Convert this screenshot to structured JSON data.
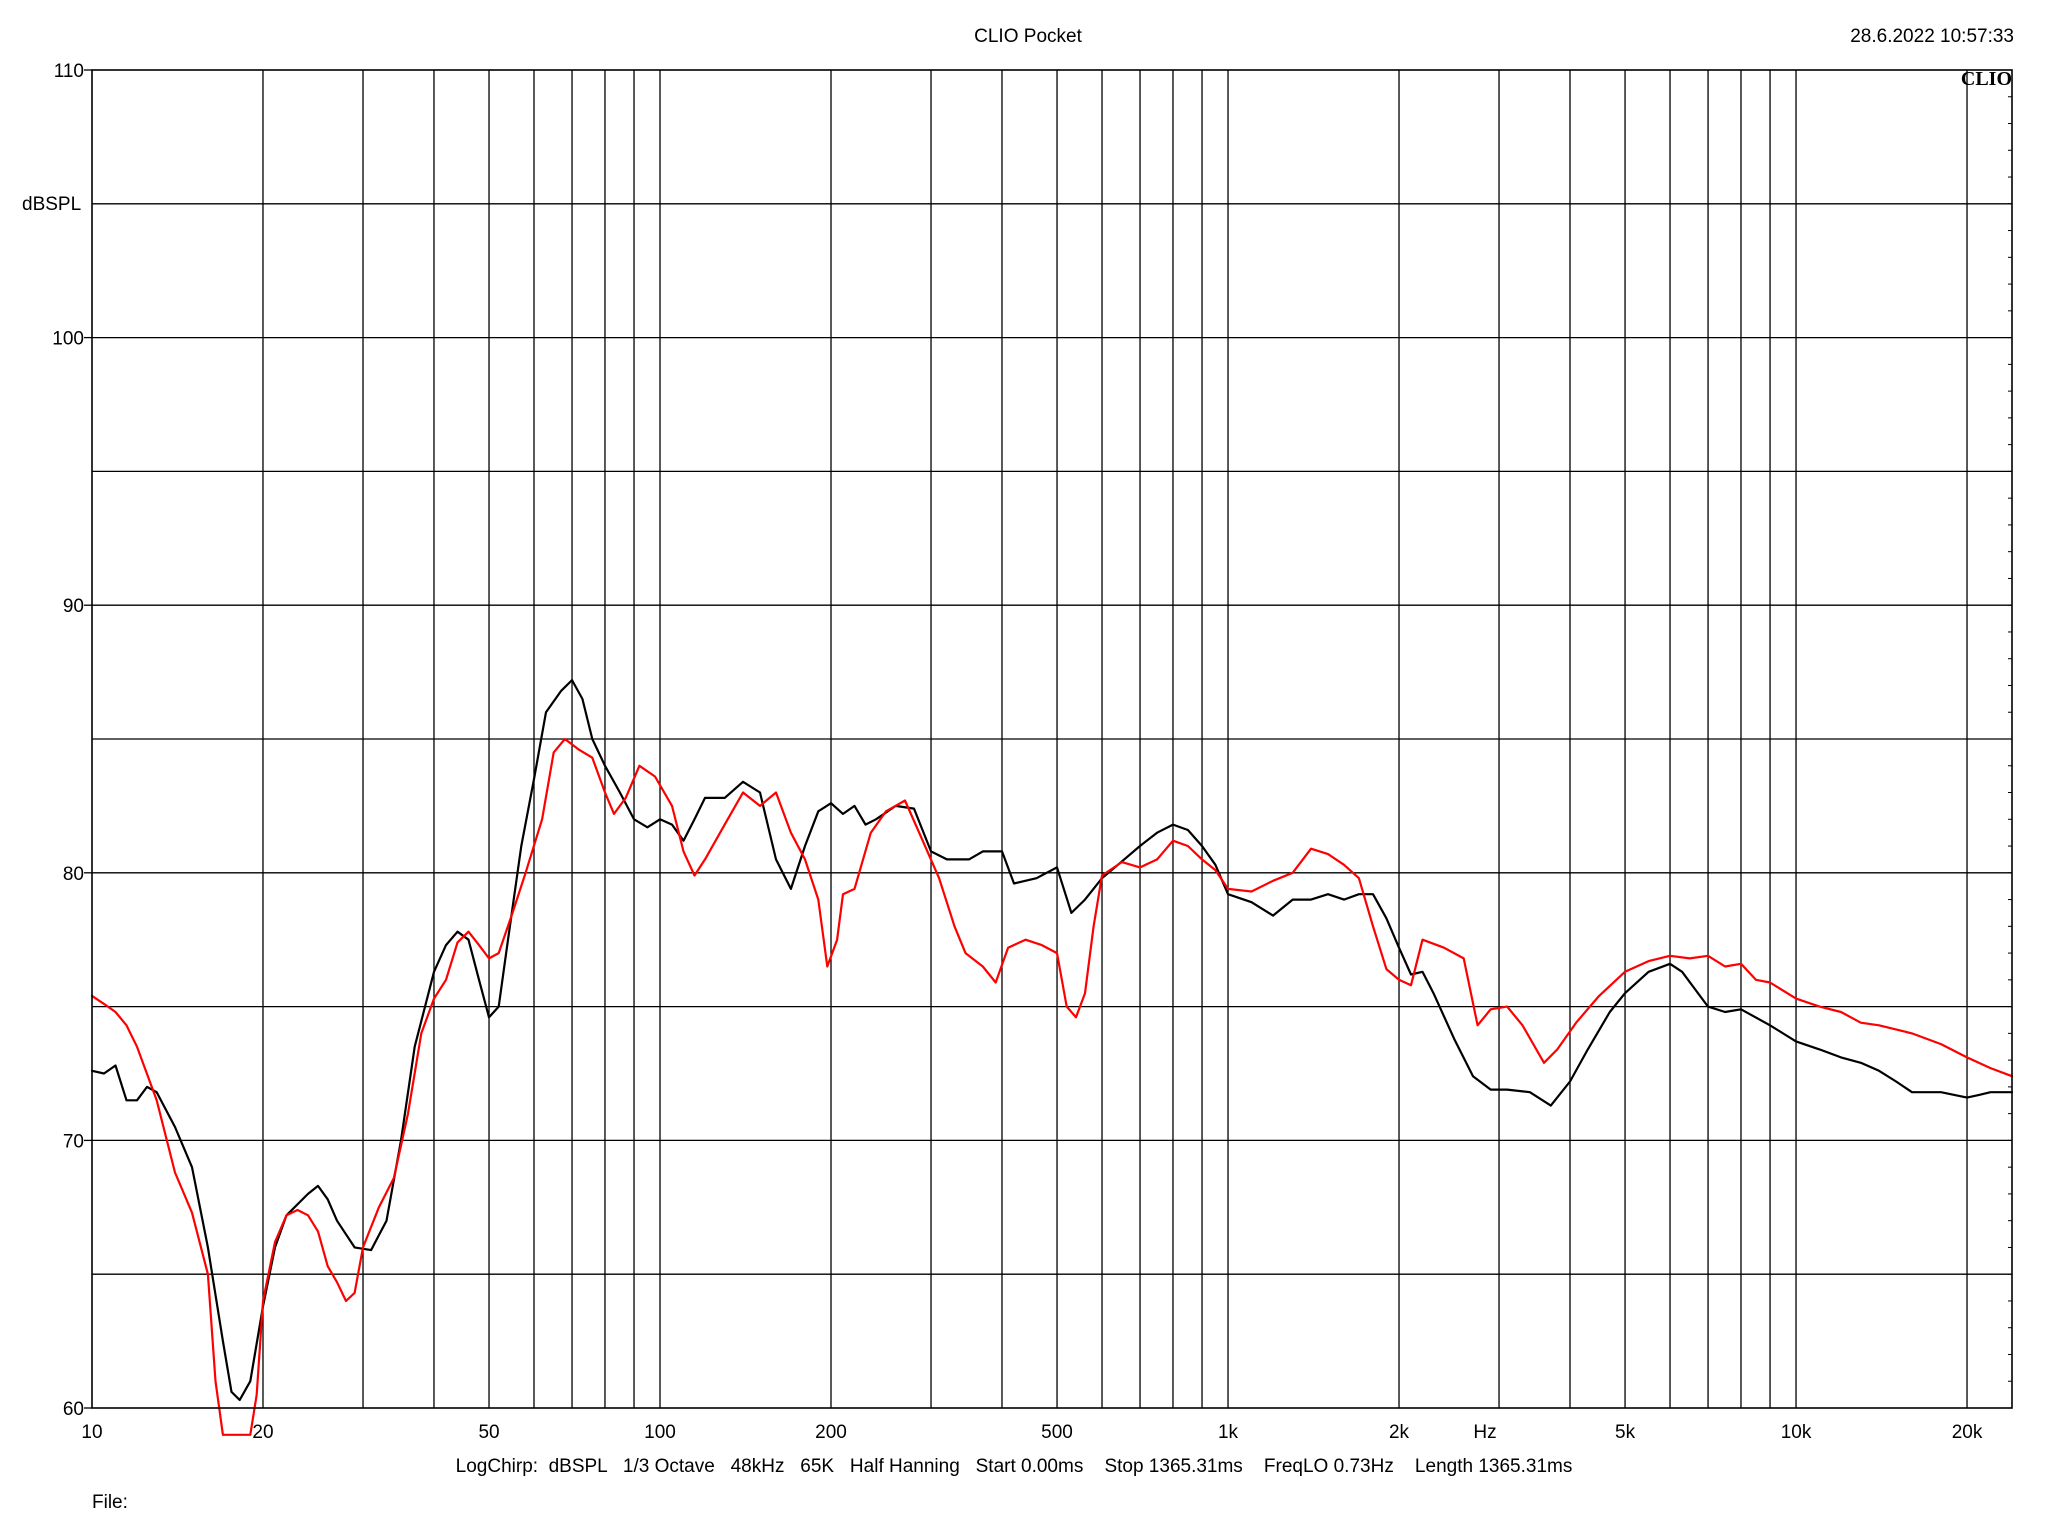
{
  "window": {
    "title": "CLIO Pocket",
    "timestamp": "28.6.2022 10:57:33",
    "logo": "CLIO"
  },
  "footer": {
    "settings": "LogChirp:  dBSPL   1/3 Octave   48kHz   65K   Half Hanning   Start 0.00ms    Stop 1365.31ms    FreqLO 0.73Hz    Length 1365.31ms",
    "file_label": "File:"
  },
  "chart_data": {
    "type": "line",
    "title": "CLIO Pocket",
    "ylabel": "dBSPL",
    "xlabel": "Hz",
    "x_scale": "log",
    "xlim": [
      10,
      24000
    ],
    "ylim": [
      60,
      110
    ],
    "grid": true,
    "y_ticks": [
      {
        "value": 60,
        "label": "60"
      },
      {
        "value": 70,
        "label": "70"
      },
      {
        "value": 80,
        "label": "80"
      },
      {
        "value": 90,
        "label": "90"
      },
      {
        "value": 100,
        "label": "100"
      },
      {
        "value": 110,
        "label": "110"
      }
    ],
    "x_ticks": [
      {
        "value": 10,
        "label": "10"
      },
      {
        "value": 20,
        "label": "20"
      },
      {
        "value": 50,
        "label": "50"
      },
      {
        "value": 100,
        "label": "100"
      },
      {
        "value": 200,
        "label": "200"
      },
      {
        "value": 500,
        "label": "500"
      },
      {
        "value": 1000,
        "label": "1k"
      },
      {
        "value": 2000,
        "label": "2k"
      },
      {
        "value": 5000,
        "label": "5k"
      },
      {
        "value": 10000,
        "label": "10k"
      },
      {
        "value": 20000,
        "label": "20k"
      }
    ],
    "series": [
      {
        "color": "#000000",
        "points": [
          [
            10,
            72.6
          ],
          [
            10.5,
            72.5
          ],
          [
            11,
            72.8
          ],
          [
            11.5,
            71.5
          ],
          [
            12,
            71.5
          ],
          [
            12.5,
            72.0
          ],
          [
            13,
            71.8
          ],
          [
            14,
            70.5
          ],
          [
            15,
            69.0
          ],
          [
            16,
            66.0
          ],
          [
            17,
            62.5
          ],
          [
            17.6,
            60.6
          ],
          [
            18.2,
            60.3
          ],
          [
            19,
            61.0
          ],
          [
            20,
            63.8
          ],
          [
            21,
            66.0
          ],
          [
            22,
            67.2
          ],
          [
            24,
            68.0
          ],
          [
            25,
            68.3
          ],
          [
            26,
            67.8
          ],
          [
            27,
            67.0
          ],
          [
            29,
            66.0
          ],
          [
            31,
            65.9
          ],
          [
            33,
            67.0
          ],
          [
            35,
            70.0
          ],
          [
            37,
            73.5
          ],
          [
            40,
            76.3
          ],
          [
            42,
            77.3
          ],
          [
            44,
            77.8
          ],
          [
            46,
            77.5
          ],
          [
            48,
            76.0
          ],
          [
            50,
            74.6
          ],
          [
            52,
            75.0
          ],
          [
            54,
            77.5
          ],
          [
            57,
            81.0
          ],
          [
            60,
            83.5
          ],
          [
            63,
            86.0
          ],
          [
            67,
            86.8
          ],
          [
            70,
            87.2
          ],
          [
            73,
            86.5
          ],
          [
            76,
            85.0
          ],
          [
            80,
            84.0
          ],
          [
            85,
            83.0
          ],
          [
            90,
            82.0
          ],
          [
            95,
            81.7
          ],
          [
            100,
            82.0
          ],
          [
            105,
            81.8
          ],
          [
            110,
            81.2
          ],
          [
            115,
            82.0
          ],
          [
            120,
            82.8
          ],
          [
            130,
            82.8
          ],
          [
            140,
            83.4
          ],
          [
            150,
            83.0
          ],
          [
            160,
            80.5
          ],
          [
            170,
            79.4
          ],
          [
            180,
            81.0
          ],
          [
            190,
            82.3
          ],
          [
            200,
            82.6
          ],
          [
            210,
            82.2
          ],
          [
            220,
            82.5
          ],
          [
            230,
            81.8
          ],
          [
            240,
            82.0
          ],
          [
            260,
            82.5
          ],
          [
            280,
            82.4
          ],
          [
            300,
            80.8
          ],
          [
            320,
            80.5
          ],
          [
            350,
            80.5
          ],
          [
            370,
            80.8
          ],
          [
            400,
            80.8
          ],
          [
            420,
            79.6
          ],
          [
            460,
            79.8
          ],
          [
            500,
            80.2
          ],
          [
            530,
            78.5
          ],
          [
            560,
            79.0
          ],
          [
            600,
            79.8
          ],
          [
            640,
            80.3
          ],
          [
            700,
            81.0
          ],
          [
            750,
            81.5
          ],
          [
            800,
            81.8
          ],
          [
            850,
            81.6
          ],
          [
            900,
            81.0
          ],
          [
            950,
            80.3
          ],
          [
            1000,
            79.2
          ],
          [
            1100,
            78.9
          ],
          [
            1200,
            78.4
          ],
          [
            1300,
            79.0
          ],
          [
            1400,
            79.0
          ],
          [
            1500,
            79.2
          ],
          [
            1600,
            79.0
          ],
          [
            1700,
            79.2
          ],
          [
            1800,
            79.2
          ],
          [
            1900,
            78.3
          ],
          [
            2000,
            77.2
          ],
          [
            2100,
            76.2
          ],
          [
            2200,
            76.3
          ],
          [
            2300,
            75.5
          ],
          [
            2500,
            73.8
          ],
          [
            2700,
            72.4
          ],
          [
            2900,
            71.9
          ],
          [
            3100,
            71.9
          ],
          [
            3400,
            71.8
          ],
          [
            3700,
            71.3
          ],
          [
            4000,
            72.2
          ],
          [
            4300,
            73.4
          ],
          [
            4700,
            74.8
          ],
          [
            5000,
            75.5
          ],
          [
            5500,
            76.3
          ],
          [
            6000,
            76.6
          ],
          [
            6300,
            76.3
          ],
          [
            7000,
            75.0
          ],
          [
            7500,
            74.8
          ],
          [
            8000,
            74.9
          ],
          [
            9000,
            74.3
          ],
          [
            10000,
            73.7
          ],
          [
            11000,
            73.4
          ],
          [
            12000,
            73.1
          ],
          [
            13000,
            72.9
          ],
          [
            14000,
            72.6
          ],
          [
            15000,
            72.2
          ],
          [
            16000,
            71.8
          ],
          [
            18000,
            71.8
          ],
          [
            20000,
            71.6
          ],
          [
            21000,
            71.7
          ],
          [
            22000,
            71.8
          ],
          [
            24000,
            71.8
          ]
        ]
      },
      {
        "color": "#ff0000",
        "points": [
          [
            10,
            75.4
          ],
          [
            10.5,
            75.1
          ],
          [
            11,
            74.8
          ],
          [
            11.5,
            74.3
          ],
          [
            12,
            73.5
          ],
          [
            13,
            71.5
          ],
          [
            14,
            68.8
          ],
          [
            15,
            67.3
          ],
          [
            16,
            65.0
          ],
          [
            16.5,
            61.0
          ],
          [
            17,
            59.0
          ],
          [
            19,
            59.0
          ],
          [
            19.5,
            60.5
          ],
          [
            20,
            64.0
          ],
          [
            21,
            66.2
          ],
          [
            22,
            67.2
          ],
          [
            23,
            67.4
          ],
          [
            24,
            67.2
          ],
          [
            25,
            66.6
          ],
          [
            26,
            65.3
          ],
          [
            27,
            64.7
          ],
          [
            28,
            64.0
          ],
          [
            29,
            64.3
          ],
          [
            30,
            66.0
          ],
          [
            32,
            67.5
          ],
          [
            34,
            68.6
          ],
          [
            36,
            71.0
          ],
          [
            38,
            74.0
          ],
          [
            40,
            75.3
          ],
          [
            42,
            76.0
          ],
          [
            44,
            77.4
          ],
          [
            46,
            77.8
          ],
          [
            48,
            77.3
          ],
          [
            50,
            76.8
          ],
          [
            52,
            77.0
          ],
          [
            55,
            78.5
          ],
          [
            58,
            80.0
          ],
          [
            62,
            82.0
          ],
          [
            65,
            84.5
          ],
          [
            68,
            85.0
          ],
          [
            72,
            84.6
          ],
          [
            76,
            84.3
          ],
          [
            80,
            83.0
          ],
          [
            83,
            82.2
          ],
          [
            87,
            82.8
          ],
          [
            92,
            84.0
          ],
          [
            98,
            83.6
          ],
          [
            105,
            82.5
          ],
          [
            110,
            80.8
          ],
          [
            115,
            79.9
          ],
          [
            120,
            80.5
          ],
          [
            130,
            81.8
          ],
          [
            140,
            83.0
          ],
          [
            150,
            82.5
          ],
          [
            160,
            83.0
          ],
          [
            170,
            81.5
          ],
          [
            180,
            80.5
          ],
          [
            190,
            79.0
          ],
          [
            197,
            76.5
          ],
          [
            205,
            77.5
          ],
          [
            210,
            79.2
          ],
          [
            220,
            79.4
          ],
          [
            235,
            81.5
          ],
          [
            250,
            82.3
          ],
          [
            270,
            82.7
          ],
          [
            290,
            81.2
          ],
          [
            310,
            79.8
          ],
          [
            330,
            78.0
          ],
          [
            345,
            77.0
          ],
          [
            370,
            76.5
          ],
          [
            390,
            75.9
          ],
          [
            410,
            77.2
          ],
          [
            440,
            77.5
          ],
          [
            470,
            77.3
          ],
          [
            500,
            77.0
          ],
          [
            520,
            75.0
          ],
          [
            540,
            74.6
          ],
          [
            560,
            75.5
          ],
          [
            580,
            78.0
          ],
          [
            600,
            79.9
          ],
          [
            650,
            80.4
          ],
          [
            700,
            80.2
          ],
          [
            750,
            80.5
          ],
          [
            800,
            81.2
          ],
          [
            850,
            81.0
          ],
          [
            900,
            80.5
          ],
          [
            950,
            80.1
          ],
          [
            1000,
            79.4
          ],
          [
            1100,
            79.3
          ],
          [
            1200,
            79.7
          ],
          [
            1300,
            80.0
          ],
          [
            1400,
            80.9
          ],
          [
            1500,
            80.7
          ],
          [
            1600,
            80.3
          ],
          [
            1700,
            79.8
          ],
          [
            1800,
            78.0
          ],
          [
            1900,
            76.4
          ],
          [
            2000,
            76.0
          ],
          [
            2100,
            75.8
          ],
          [
            2200,
            77.5
          ],
          [
            2400,
            77.2
          ],
          [
            2600,
            76.8
          ],
          [
            2750,
            74.3
          ],
          [
            2900,
            74.9
          ],
          [
            3100,
            75.0
          ],
          [
            3300,
            74.3
          ],
          [
            3600,
            72.9
          ],
          [
            3800,
            73.4
          ],
          [
            4100,
            74.4
          ],
          [
            4500,
            75.4
          ],
          [
            5000,
            76.3
          ],
          [
            5500,
            76.7
          ],
          [
            6000,
            76.9
          ],
          [
            6500,
            76.8
          ],
          [
            7000,
            76.9
          ],
          [
            7500,
            76.5
          ],
          [
            8000,
            76.6
          ],
          [
            8500,
            76.0
          ],
          [
            9000,
            75.9
          ],
          [
            10000,
            75.3
          ],
          [
            11000,
            75.0
          ],
          [
            12000,
            74.8
          ],
          [
            13000,
            74.4
          ],
          [
            14000,
            74.3
          ],
          [
            16000,
            74.0
          ],
          [
            18000,
            73.6
          ],
          [
            20000,
            73.1
          ],
          [
            22000,
            72.7
          ],
          [
            24000,
            72.4
          ]
        ]
      }
    ]
  }
}
